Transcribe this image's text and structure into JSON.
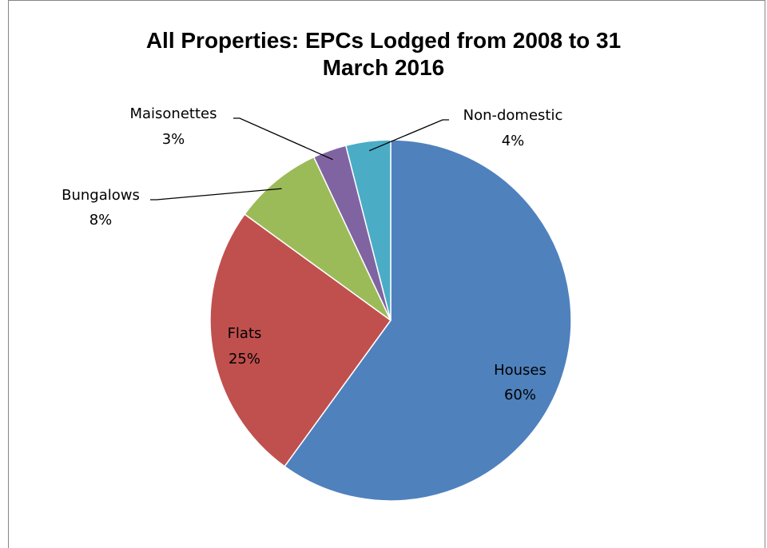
{
  "chart_data": {
    "type": "pie",
    "title_line1": "All Properties: EPCs Lodged  from 2008 to 31",
    "title_line2": "March 2016",
    "start_angle_deg": 0,
    "direction": "clockwise",
    "slices": [
      {
        "name": "Houses",
        "value": 60,
        "label": "60%",
        "color": "#4F81BD"
      },
      {
        "name": "Flats",
        "value": 25,
        "label": "25%",
        "color": "#C0504D"
      },
      {
        "name": "Bungalows",
        "value": 8,
        "label": "8%",
        "color": "#9BBB59"
      },
      {
        "name": "Maisonettes",
        "value": 3,
        "label": "3%",
        "color": "#8064A2"
      },
      {
        "name": "Non-domestic",
        "value": 4,
        "label": "4%",
        "color": "#4BACC6"
      }
    ],
    "legend": "none"
  }
}
